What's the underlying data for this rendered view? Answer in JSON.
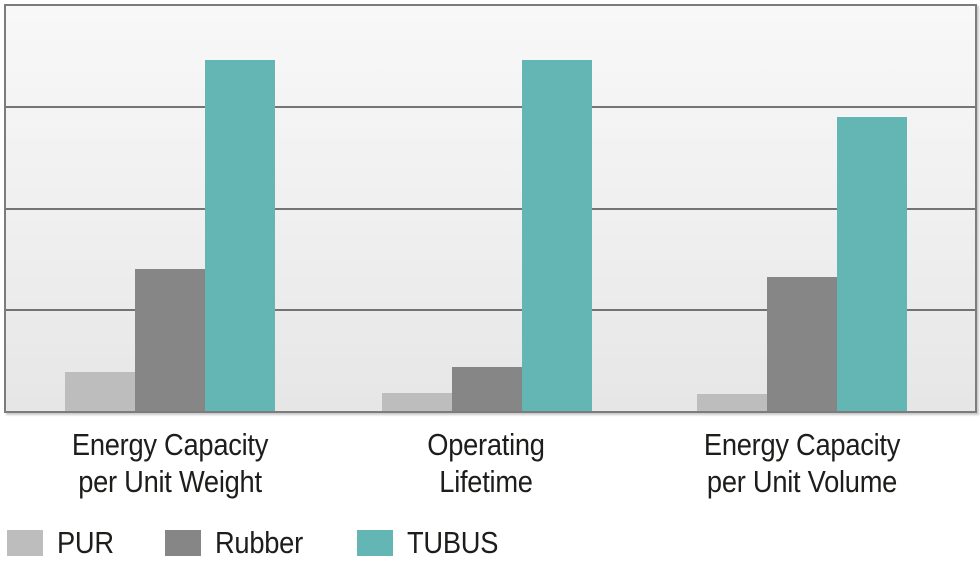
{
  "chart_data": {
    "type": "bar",
    "title": "",
    "xlabel": "",
    "ylabel": "",
    "ylim": [
      0,
      4
    ],
    "grid": "horizontal",
    "gridline_values": [
      1,
      2,
      3
    ],
    "legend_position": "bottom-left",
    "categories": [
      {
        "line1": "Energy Capacity",
        "line2": "per Unit Weight"
      },
      {
        "line1": "Operating",
        "line2": "Lifetime"
      },
      {
        "line1": "Energy Capacity",
        "line2": "per Unit Volume"
      }
    ],
    "series": [
      {
        "name": "PUR",
        "color": "#bdbdbd",
        "values": [
          0.39,
          0.18,
          0.17
        ]
      },
      {
        "name": "Rubber",
        "color": "#868686",
        "values": [
          1.4,
          0.43,
          1.32
        ]
      },
      {
        "name": "TUBUS",
        "color": "#63b6b4",
        "values": [
          3.47,
          3.47,
          2.9
        ]
      }
    ]
  },
  "colors": {
    "plot_border": "#7c7c7c",
    "gridline": "#5e5e5e",
    "plot_bg_top": "#f8f8f8",
    "plot_bg_bottom": "#e6e6e6",
    "text": "#1d1d1b"
  }
}
